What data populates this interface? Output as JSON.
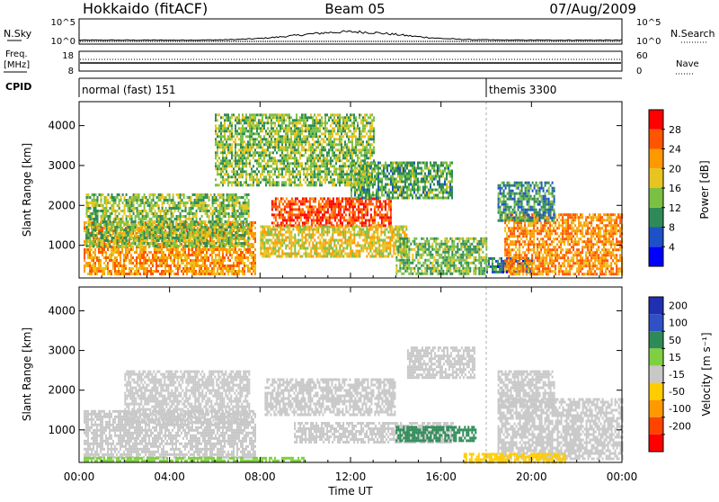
{
  "header": {
    "title": "Hokkaido (fitACF)",
    "beam": "Beam 05",
    "date": "07/Aug/2009"
  },
  "top_panels": {
    "nsky_label": "N.Sky",
    "nsky_ticks": [
      "10^5",
      "10^0"
    ],
    "nsearch_label": "N.Search",
    "freq_label_1": "Freq.",
    "freq_label_2": "[MHz]",
    "freq_ticks": [
      "18",
      "8"
    ],
    "nave_label": "Nave",
    "nave_ticks": [
      "60",
      "0"
    ],
    "cpid_label": "CPID",
    "cpid_modes": [
      {
        "label": "normal (fast) 151",
        "start_hour": 0
      },
      {
        "label": "themis 3300",
        "start_hour": 18
      }
    ]
  },
  "chart_data": [
    {
      "type": "heatmap",
      "name": "power",
      "ylabel": "Slant Range [km]",
      "yticks": [
        1000,
        2000,
        3000,
        4000
      ],
      "ylim": [
        180,
        4600
      ],
      "xlim": [
        0,
        24
      ],
      "colorbar_label": "Power [dB]",
      "colorbar_ticks": [
        4,
        8,
        12,
        16,
        20,
        24,
        28
      ],
      "colorbar_colors": [
        "#0000ff",
        "#1e50c8",
        "#2e8b57",
        "#7bc043",
        "#e8c420",
        "#ff9900",
        "#ff5500",
        "#ff0000"
      ],
      "regions": [
        {
          "h0": 0.2,
          "h1": 7.8,
          "r0": 250,
          "r1": 1600,
          "v": 22
        },
        {
          "h0": 0.3,
          "h1": 7.5,
          "r0": 1000,
          "r1": 2300,
          "v": 14
        },
        {
          "h0": 8.5,
          "h1": 13.8,
          "r0": 1500,
          "r1": 2200,
          "v": 27
        },
        {
          "h0": 8.0,
          "h1": 14.5,
          "r0": 700,
          "r1": 1500,
          "v": 18
        },
        {
          "h0": 12.0,
          "h1": 16.5,
          "r0": 2200,
          "r1": 3100,
          "v": 12
        },
        {
          "h0": 14.0,
          "h1": 18.0,
          "r0": 300,
          "r1": 1200,
          "v": 13
        },
        {
          "h0": 18.0,
          "h1": 20.0,
          "r0": 300,
          "r1": 700,
          "v": 8
        },
        {
          "h0": 18.8,
          "h1": 24.0,
          "r0": 300,
          "r1": 1800,
          "v": 23
        },
        {
          "h0": 18.5,
          "h1": 21.0,
          "r0": 1600,
          "r1": 2600,
          "v": 10
        },
        {
          "h0": 6.0,
          "h1": 13.0,
          "r0": 2500,
          "r1": 4300,
          "v": 14
        }
      ]
    },
    {
      "type": "heatmap",
      "name": "velocity",
      "ylabel": "Slant Range [km]",
      "yticks": [
        1000,
        2000,
        3000,
        4000
      ],
      "ylim": [
        180,
        4600
      ],
      "xlim": [
        0,
        24
      ],
      "xticks": [
        "00:00",
        "04:00",
        "08:00",
        "12:00",
        "16:00",
        "20:00",
        "00:00"
      ],
      "xlabel": "Time UT",
      "colorbar_label": "Velocity [m s⁻¹]",
      "colorbar_ticks": [
        200,
        100,
        50,
        15,
        -15,
        -50,
        -100,
        -200
      ],
      "colorbar_colors": [
        "#2030b0",
        "#3050c8",
        "#2e8b57",
        "#7fd040",
        "#c8c8c8",
        "#ffcc00",
        "#ff9900",
        "#ff4400",
        "#ff0000"
      ],
      "regions": [
        {
          "h0": 0.2,
          "h1": 7.8,
          "r0": 300,
          "r1": 1500,
          "v": 0
        },
        {
          "h0": 2.0,
          "h1": 7.5,
          "r0": 1200,
          "r1": 2500,
          "v": 0
        },
        {
          "h0": 8.2,
          "h1": 14.0,
          "r0": 1400,
          "r1": 2300,
          "v": 0
        },
        {
          "h0": 9.5,
          "h1": 16.5,
          "r0": 700,
          "r1": 1200,
          "v": 0
        },
        {
          "h0": 14.0,
          "h1": 17.5,
          "r0": 700,
          "r1": 1100,
          "v": 60
        },
        {
          "h0": 14.5,
          "h1": 17.5,
          "r0": 2300,
          "r1": 3100,
          "v": 0
        },
        {
          "h0": 18.5,
          "h1": 24.0,
          "r0": 300,
          "r1": 1800,
          "v": 0
        },
        {
          "h0": 18.5,
          "h1": 21.0,
          "r0": 1600,
          "r1": 2500,
          "v": 0
        },
        {
          "h0": 17.0,
          "h1": 21.5,
          "r0": 200,
          "r1": 420,
          "v": -40
        },
        {
          "h0": 0.2,
          "h1": 10.0,
          "r0": 200,
          "r1": 320,
          "v": 40
        }
      ]
    }
  ]
}
